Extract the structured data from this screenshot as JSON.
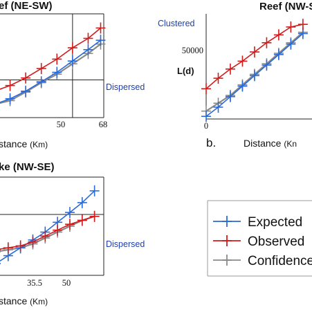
{
  "chart_data": [
    {
      "panel": "top-left",
      "type": "line",
      "title": "ef (NE-SW)",
      "xlabel": "stance",
      "xunit": "(Km)",
      "x_ticks": [
        "50",
        "68"
      ],
      "annotations": [
        "Dispersed"
      ],
      "xlim": [
        0,
        70
      ],
      "ylim": [
        0,
        110
      ],
      "hline": 40,
      "vline": 50,
      "x": [
        0,
        10,
        20,
        30,
        40,
        50,
        60,
        68
      ],
      "series": [
        {
          "name": "Expected",
          "color": "#2a6ad8",
          "values": [
            14,
            20,
            28,
            38,
            48,
            60,
            72,
            82
          ]
        },
        {
          "name": "Observed",
          "color": "#d41a1a",
          "values": [
            28,
            34,
            42,
            52,
            62,
            74,
            84,
            95
          ]
        },
        {
          "name": "Confidence",
          "color": "#8a8a8a",
          "values": [
            14,
            18,
            27,
            37,
            46,
            57,
            68,
            78
          ]
        }
      ]
    },
    {
      "panel": "top-right",
      "type": "line",
      "title": "Reef (NW-S",
      "ylabel": "L(d)",
      "y_tick": "50000",
      "x_tick_start": "0",
      "panel_letter": "b.",
      "xlabel": "Distance",
      "xunit": "(Kn",
      "annotations": [
        "Clustered"
      ],
      "xlim": [
        0,
        70
      ],
      "ylim": [
        0,
        80000
      ],
      "x": [
        0,
        8,
        16,
        24,
        32,
        40,
        48,
        56,
        64
      ],
      "series": [
        {
          "name": "Expected",
          "color": "#2a6ad8",
          "values": [
            2000,
            9000,
            17000,
            25000,
            33000,
            41000,
            49000,
            57000,
            65000
          ]
        },
        {
          "name": "Observed",
          "color": "#d41a1a",
          "values": [
            23000,
            31000,
            38000,
            44000,
            51000,
            58000,
            64000,
            70000,
            72000
          ]
        },
        {
          "name": "Confidence",
          "color": "#8a8a8a",
          "values": [
            6000,
            12000,
            18000,
            26000,
            34000,
            42000,
            50000,
            58000,
            66000
          ]
        }
      ]
    },
    {
      "panel": "bottom-left",
      "type": "line",
      "title": "ke (NW-SE)",
      "xlabel": "stance",
      "xunit": "(Km)",
      "x_ticks": [
        "35.5",
        "50"
      ],
      "annotations": [
        "Dispersed"
      ],
      "xlim": [
        0,
        70
      ],
      "ylim": [
        0,
        100
      ],
      "hline": 62,
      "x": [
        0,
        8,
        16,
        24,
        32,
        40,
        48,
        56,
        64
      ],
      "series": [
        {
          "name": "Expected",
          "color": "#2a6ad8",
          "values": [
            12,
            20,
            28,
            36,
            44,
            54,
            64,
            74,
            86
          ]
        },
        {
          "name": "Observed",
          "color": "#d41a1a",
          "values": [
            26,
            28,
            30,
            34,
            40,
            46,
            52,
            56,
            60
          ]
        },
        {
          "name": "Confidence",
          "color": "#8a8a8a",
          "values": [
            24,
            26,
            28,
            32,
            38,
            44,
            50,
            56,
            60
          ]
        }
      ]
    }
  ],
  "legend": {
    "items": [
      {
        "label": "Expected",
        "color": "#2a6ad8"
      },
      {
        "label": "Observed",
        "color": "#d41a1a"
      },
      {
        "label": "Confidence",
        "color": "#8a8a8a"
      }
    ]
  }
}
